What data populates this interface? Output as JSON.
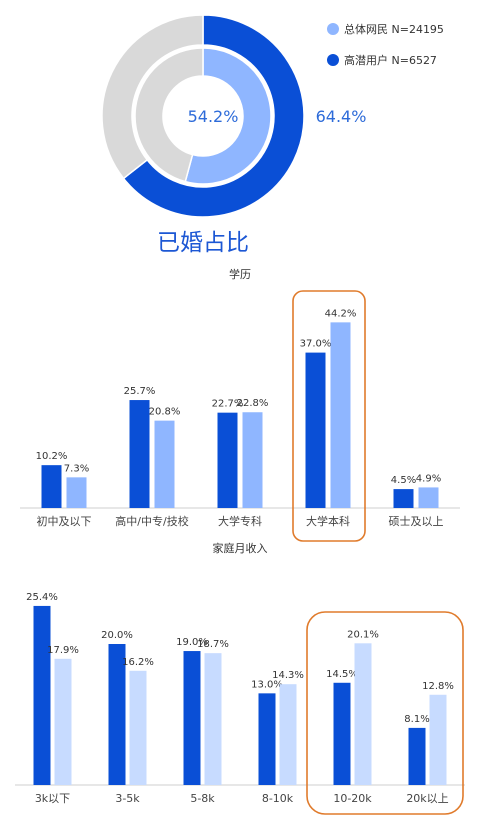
{
  "colors": {
    "dark_blue": "#0a4fd6",
    "light_blue": "#8fb6ff",
    "pale_blue": "#c7dbff",
    "gray": "#d9d9d9",
    "highlight": "#e07b2c"
  },
  "chart_data": [
    {
      "type": "pie",
      "title": "已婚占比",
      "series": [
        {
          "name": "总体网民 N=24195",
          "value": 54.2,
          "label": "54.2%",
          "ring": "inner"
        },
        {
          "name": "高潜用户 N=6527",
          "value": 64.4,
          "label": "64.4%",
          "ring": "outer"
        }
      ],
      "legend_placement": "top-right"
    },
    {
      "type": "bar",
      "title": "学历",
      "categories": [
        "初中及以下",
        "高中/中专/技校",
        "大学专科",
        "大学本科",
        "硕士及以上"
      ],
      "series": [
        {
          "name": "高潜用户 N=6527",
          "values": [
            10.2,
            25.7,
            22.7,
            37.0,
            4.5
          ],
          "labels": [
            "10.2%",
            "25.7%",
            "22.7%",
            "37.0%",
            "4.5%"
          ]
        },
        {
          "name": "总体网民 N=24195",
          "values": [
            7.3,
            20.8,
            22.8,
            44.2,
            4.9
          ],
          "labels": [
            "7.3%",
            "20.8%",
            "22.8%",
            "44.2%",
            "4.9%"
          ]
        }
      ],
      "ylim": [
        0,
        50
      ],
      "highlight_category": "大学本科"
    },
    {
      "type": "bar",
      "title": "家庭月收入",
      "categories": [
        "3k以下",
        "3-5k",
        "5-8k",
        "8-10k",
        "10-20k",
        "20k以上"
      ],
      "series": [
        {
          "name": "高潜用户 N=6527",
          "values": [
            25.4,
            20.0,
            19.0,
            13.0,
            14.5,
            8.1
          ],
          "labels": [
            "25.4%",
            "20.0%",
            "19.0%",
            "13.0%",
            "14.5%",
            "8.1%"
          ]
        },
        {
          "name": "总体网民 N=24195",
          "values": [
            17.9,
            16.2,
            18.7,
            14.3,
            20.1,
            12.8
          ],
          "labels": [
            "17.9%",
            "16.2%",
            "18.7%",
            "14.3%",
            "20.1%",
            "12.8%"
          ]
        }
      ],
      "ylim": [
        0,
        27
      ],
      "highlight_categories": [
        "10-20k",
        "20k以上"
      ]
    }
  ]
}
